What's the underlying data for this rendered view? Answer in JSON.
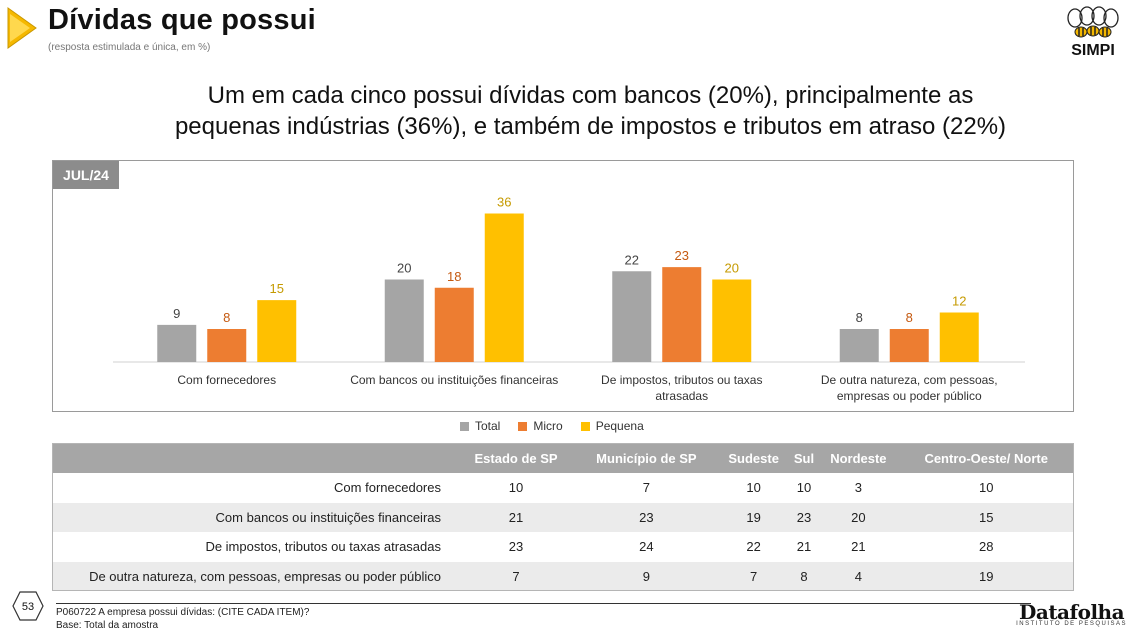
{
  "header": {
    "title": "Dívidas que possui",
    "subtitle": "(resposta estimulada e única, em %)",
    "logo_text": "SIMPI"
  },
  "headline": {
    "line1": "Um em cada cinco possui dívidas com bancos (20%), principalmente as",
    "line2": "pequenas indústrias (36%), e também de impostos e tributos em atraso (22%)"
  },
  "period_badge": "JUL/24",
  "colors": {
    "total": "#a5a5a5",
    "micro": "#ed7d31",
    "pequena": "#ffc000",
    "micro_label": "#c55a11",
    "pequena_label": "#c59a00"
  },
  "chart_data": {
    "type": "bar",
    "categories": [
      [
        "Com fornecedores"
      ],
      [
        "Com bancos ou instituições financeiras"
      ],
      [
        "De impostos, tributos ou taxas",
        "atrasadas"
      ],
      [
        "De outra natureza, com pessoas,",
        "empresas ou poder público"
      ]
    ],
    "series": [
      {
        "name": "Total",
        "values": [
          9,
          20,
          22,
          8
        ]
      },
      {
        "name": "Micro",
        "values": [
          8,
          18,
          23,
          8
        ]
      },
      {
        "name": "Pequena",
        "values": [
          15,
          36,
          20,
          12
        ]
      }
    ],
    "ylim": [
      0,
      40
    ],
    "legend_position": "bottom"
  },
  "table": {
    "headers": [
      "",
      "Estado de  SP",
      "Município de SP",
      "Sudeste",
      "Sul",
      "Nordeste",
      "Centro-Oeste/ Norte"
    ],
    "rows": [
      {
        "label": "Com fornecedores",
        "values": [
          "10",
          "7",
          "10",
          "10",
          "3",
          "10"
        ]
      },
      {
        "label": "Com bancos ou instituições financeiras",
        "values": [
          "21",
          "23",
          "19",
          "23",
          "20",
          "15"
        ]
      },
      {
        "label": "De impostos, tributos ou taxas atrasadas",
        "values": [
          "23",
          "24",
          "22",
          "21",
          "21",
          "28"
        ]
      },
      {
        "label": "De outra natureza, com pessoas, empresas ou poder público",
        "values": [
          "7",
          "9",
          "7",
          "8",
          "4",
          "19"
        ]
      }
    ]
  },
  "footer": {
    "page_number": "53",
    "question": "P060722 A empresa possui dívidas: (CITE CADA ITEM)?",
    "base": "Base: Total da amostra",
    "brand": "Datafolha",
    "brand_sub": "INSTITUTO DE PESQUISAS"
  }
}
